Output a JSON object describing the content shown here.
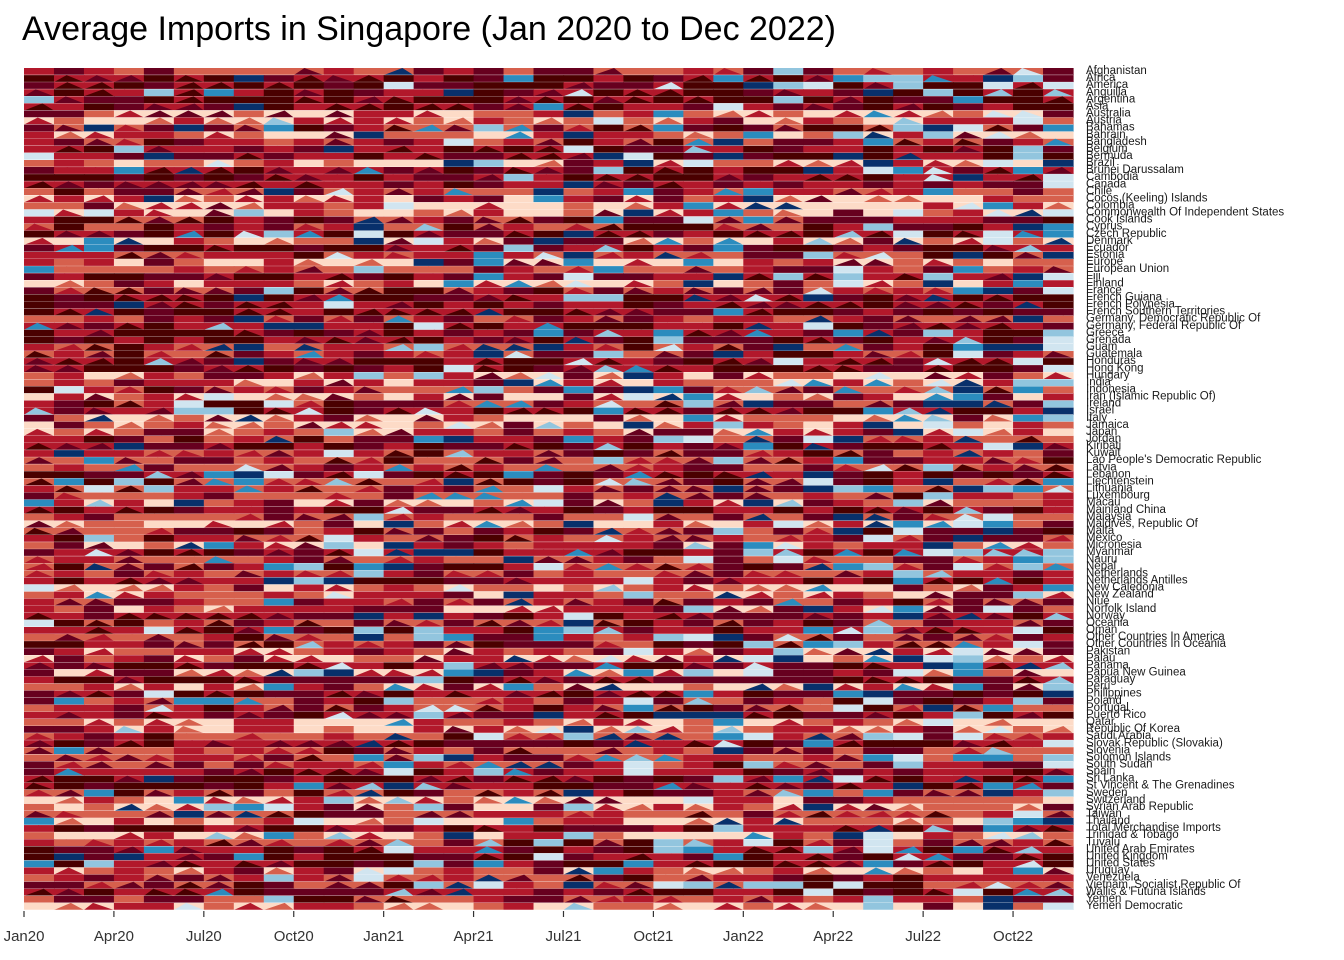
{
  "chart_data": {
    "type": "heatmap",
    "subtype": "horizon",
    "title": "Average Imports in Singapore (Jan 2020 to Dec 2022)",
    "xlabel": "",
    "ylabel": "",
    "x_ticks": [
      "Jan20",
      "Apr20",
      "Jul20",
      "Oct20",
      "Jan21",
      "Apr21",
      "Jul21",
      "Oct21",
      "Jan22",
      "Apr22",
      "Jul22",
      "Oct22"
    ],
    "months": [
      "Jan20",
      "Feb20",
      "Mar20",
      "Apr20",
      "May20",
      "Jun20",
      "Jul20",
      "Aug20",
      "Sep20",
      "Oct20",
      "Nov20",
      "Dec20",
      "Jan21",
      "Feb21",
      "Mar21",
      "Apr21",
      "May21",
      "Jun21",
      "Jul21",
      "Aug21",
      "Sep21",
      "Oct21",
      "Nov21",
      "Dec21",
      "Jan22",
      "Feb22",
      "Mar22",
      "Apr22",
      "May22",
      "Jun22",
      "Jul22",
      "Aug22",
      "Sep22",
      "Oct22",
      "Nov22",
      "Dec22"
    ],
    "countries": [
      "Afghanistan",
      "Africa",
      "America",
      "Anguilla",
      "Argentina",
      "Asia",
      "Australia",
      "Austria",
      "Bahamas",
      "Bahrain",
      "Bangladesh",
      "Belgium",
      "Bermuda",
      "Brazil",
      "Brunei Darussalam",
      "Cambodia",
      "Canada",
      "Chile",
      "Cocos (Keeling) Islands",
      "Colombia",
      "Commonwealth Of Independent States",
      "Cook Islands",
      "Cyprus",
      "Czech Republic",
      "Denmark",
      "Ecuador",
      "Estonia",
      "Europe",
      "European Union",
      "Fiji",
      "Finland",
      "France",
      "French Guiana",
      "French Polynesia",
      "French Southern Territories",
      "Germany, Democratic Republic Of",
      "Germany, Federal Republic Of",
      "Greece",
      "Grenada",
      "Guam",
      "Guatemala",
      "Honduras",
      "Hong Kong",
      "Hungary",
      "India",
      "Indonesia",
      "Iran (Islamic Republic Of)",
      "Ireland",
      "Israel",
      "Italy",
      "Jamaica",
      "Japan",
      "Jordan",
      "Kiribati",
      "Kuwait",
      "Lao People's Democratic Republic",
      "Latvia",
      "Lebanon",
      "Liechtenstein",
      "Lithuania",
      "Luxembourg",
      "Macau",
      "Mainland China",
      "Malaysia",
      "Maldives, Republic Of",
      "Malta",
      "Mexico",
      "Micronesia",
      "Myanmar",
      "Nauru",
      "Nepal",
      "Netherlands",
      "Netherlands Antilles",
      "New Caledonia",
      "New Zealand",
      "Niue",
      "Norfolk Island",
      "Norway",
      "Oceania",
      "Oman",
      "Other Countries In America",
      "Other Countries In Oceania",
      "Pakistan",
      "Palau",
      "Panama",
      "Papua New Guinea",
      "Paraguay",
      "Peru",
      "Philippines",
      "Poland",
      "Portugal",
      "Puerto Rico",
      "Qatar",
      "Republic Of Korea",
      "Saudi Arabia",
      "Slovak Republic (Slovakia)",
      "Slovenia",
      "Solomon Islands",
      "South Sudan",
      "Spain",
      "Sri Lanka",
      "St Vincent & The Grenadines",
      "Sweden",
      "Switzerland",
      "Syrian Arab Republic",
      "Taiwan",
      "Thailand",
      "Total Merchandise Imports",
      "Trinidad & Tobago",
      "Tuvalu",
      "United Arab Emirates",
      "United Kingdom",
      "United States",
      "Uruguay",
      "Venezuela",
      "Vietnam, Socialist Republic Of",
      "Wallis & Futuna Islands",
      "Yemen",
      "Yemen Democratic"
    ],
    "color_scale": {
      "positive": [
        "#fddbc7",
        "#d6604d",
        "#b2182b",
        "#67001f",
        "#4a0000"
      ],
      "negative": [
        "#d1e5f0",
        "#92c5de",
        "#2b8cbe",
        "#08306b"
      ],
      "background": "#ffffff"
    },
    "trend": "above-average (red) bands dominate 2020–2021; below-average (blue) bands become more frequent in 2022"
  }
}
